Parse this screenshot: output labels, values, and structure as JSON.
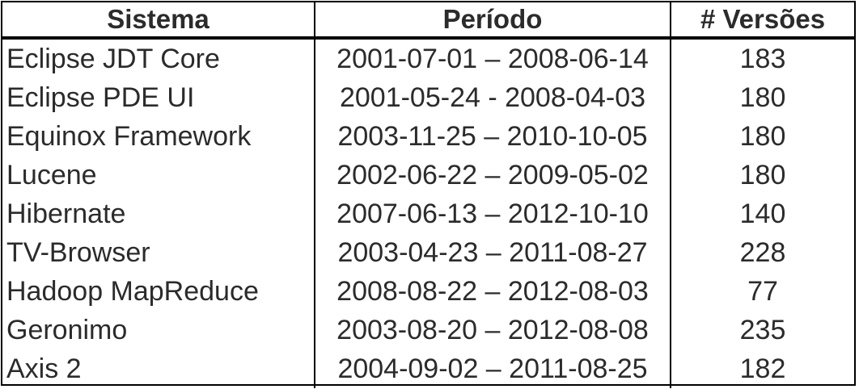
{
  "table": {
    "headers": {
      "system": "Sistema",
      "period": "Período",
      "versions": "# Versões"
    },
    "rows": [
      {
        "system": "Eclipse JDT Core",
        "period": "2001-07-01 – 2008-06-14",
        "versions": "183"
      },
      {
        "system": "Eclipse PDE UI",
        "period": "2001-05-24 - 2008-04-03",
        "versions": "180"
      },
      {
        "system": "Equinox Framework",
        "period": "2003-11-25 – 2010-10-05",
        "versions": "180"
      },
      {
        "system": "Lucene",
        "period": "2002-06-22 – 2009-05-02",
        "versions": "180"
      },
      {
        "system": "Hibernate",
        "period": "2007-06-13 – 2012-10-10",
        "versions": "140"
      },
      {
        "system": "TV-Browser",
        "period": "2003-04-23 – 2011-08-27",
        "versions": "228"
      },
      {
        "system": "Hadoop MapReduce",
        "period": "2008-08-22 – 2012-08-03",
        "versions": "77"
      },
      {
        "system": "Geronimo",
        "period": "2003-08-20 – 2012-08-08",
        "versions": "235"
      },
      {
        "system": "Axis 2",
        "period": "2004-09-02 – 2011-08-25",
        "versions": "182"
      }
    ]
  }
}
